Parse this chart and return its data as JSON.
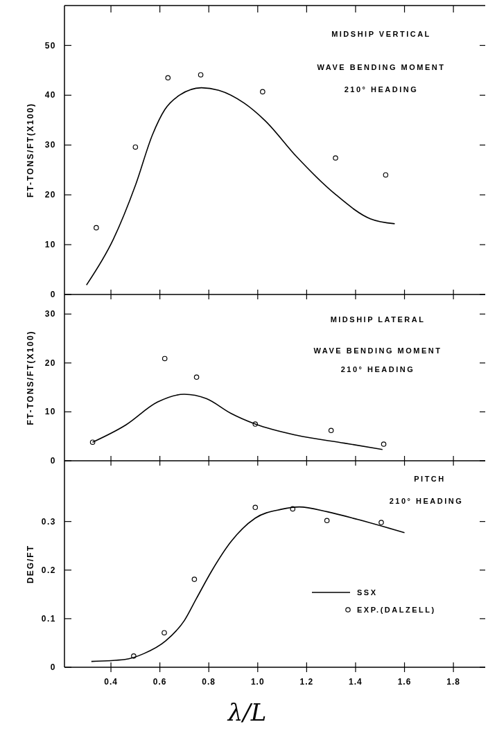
{
  "chart_data": [
    {
      "type": "line",
      "xlim": [
        0.21,
        1.93
      ],
      "xticks": [
        0.4,
        0.6,
        0.8,
        1,
        1.2,
        1.4,
        1.6,
        1.8
      ],
      "ylim": [
        0,
        58
      ],
      "yticks": [
        0,
        10,
        20,
        30,
        40,
        50
      ],
      "ylabel": "FT-TONS/FT(X100)",
      "tick_labels": "y",
      "legend": false,
      "annotations": [
        "MIDSHIP VERTICAL",
        "WAVE BENDING MOMENT",
        "210° HEADING"
      ],
      "series": [
        {
          "type": "line",
          "color": "#000000",
          "x": [
            0.3,
            0.41,
            0.5,
            0.57,
            0.62,
            0.68,
            0.77,
            0.84,
            0.945,
            1.03,
            1.16,
            1.32,
            1.46,
            1.56
          ],
          "values": [
            1.9,
            11.1,
            21.9,
            32.1,
            37.1,
            40.0,
            41.5,
            41.0,
            38.4,
            34.9,
            27.6,
            20.0,
            15.2,
            14.2
          ]
        },
        {
          "type": "scatter",
          "marker": "circle",
          "color": "#000000",
          "x": [
            0.34,
            0.5,
            0.633,
            0.767,
            1.02,
            1.318,
            1.523
          ],
          "values": [
            13.4,
            29.6,
            43.5,
            44.1,
            40.7,
            27.4,
            24.0
          ]
        }
      ]
    },
    {
      "type": "line",
      "xlim": [
        0.21,
        1.93
      ],
      "xticks": [
        0.4,
        0.6,
        0.8,
        1,
        1.2,
        1.4,
        1.6,
        1.8
      ],
      "ylim": [
        0,
        34
      ],
      "yticks": [
        0,
        10,
        20,
        30
      ],
      "ylabel": "FT-TONS/FT(X100)",
      "tick_labels": "y",
      "legend": false,
      "annotations": [
        "MIDSHIP LATERAL",
        "WAVE BENDING MOMENT",
        "210° HEADING"
      ],
      "series": [
        {
          "type": "line",
          "color": "#000000",
          "x": [
            0.325,
            0.46,
            0.59,
            0.7,
            0.79,
            0.89,
            0.99,
            1.16,
            1.355,
            1.51
          ],
          "values": [
            3.8,
            7.3,
            12.0,
            13.6,
            12.7,
            9.7,
            7.5,
            5.2,
            3.6,
            2.3
          ]
        },
        {
          "type": "scatter",
          "marker": "circle",
          "color": "#000000",
          "x": [
            0.325,
            0.62,
            0.75,
            0.99,
            1.3,
            1.515
          ],
          "values": [
            3.8,
            20.9,
            17.1,
            7.5,
            6.2,
            3.4
          ]
        }
      ]
    },
    {
      "type": "line",
      "xlim": [
        0.21,
        1.93
      ],
      "xticks": [
        0.4,
        0.6,
        0.8,
        {
          "value": 1.0,
          "label": "1.0"
        },
        1.2,
        1.4,
        1.6,
        1.8
      ],
      "ylim": [
        0,
        0.425
      ],
      "yticks": [
        0,
        0.1,
        0.2,
        0.3
      ],
      "ylabel": "DEG/FT",
      "xlabel": "λ/L",
      "legend": "right",
      "annotations": [
        "PITCH",
        "210° HEADING"
      ],
      "series": [
        {
          "type": "line",
          "name": "SSX",
          "color": "#000000",
          "x": [
            0.32,
            0.457,
            0.534,
            0.623,
            0.7,
            0.75,
            0.814,
            0.89,
            0.99,
            1.095,
            1.17,
            1.285,
            1.41,
            1.6
          ],
          "values": [
            0.012,
            0.016,
            0.028,
            0.054,
            0.096,
            0.142,
            0.2,
            0.258,
            0.307,
            0.325,
            0.33,
            0.32,
            0.304,
            0.277
          ]
        },
        {
          "type": "scatter",
          "name": "EXP.(DALZELL)",
          "marker": "circle",
          "color": "#000000",
          "x": [
            0.493,
            0.618,
            0.741,
            0.99,
            1.143,
            1.283,
            1.505
          ],
          "values": [
            0.023,
            0.071,
            0.181,
            0.329,
            0.326,
            0.302,
            0.298
          ]
        }
      ]
    }
  ]
}
